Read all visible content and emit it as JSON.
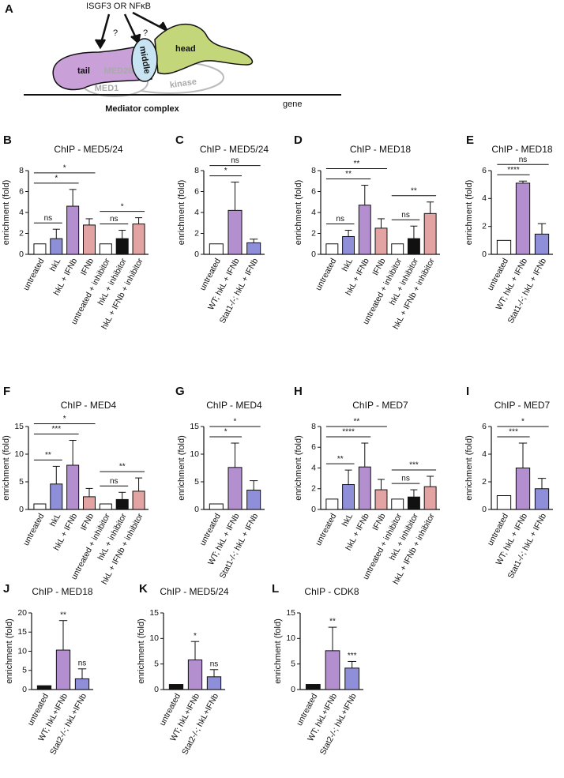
{
  "panel_a": {
    "letter": "A",
    "stimulus": "ISGF3 OR NFκB",
    "question_1": "?",
    "question_2": "?",
    "tail": "tail",
    "middle": "middle",
    "head": "head",
    "med26": "MED26",
    "med1": "MED1",
    "kinase": "kinase",
    "complex": "Mediator complex",
    "gene": "gene"
  },
  "chart_data": [
    {
      "type": "bar",
      "panel": "B",
      "title": "ChIP - MED5/24",
      "ylabel": "enrichment (fold)",
      "categories": [
        "untreated",
        "hkL",
        "hkL + IFNb",
        "IFNb",
        "untreated + inhibitor",
        "hkL + inhibitor",
        "hkL + IFNb + inhibitor"
      ],
      "values": [
        1,
        1.5,
        4.6,
        2.8,
        1,
        1.5,
        2.9
      ],
      "errors": [
        0,
        0.9,
        1.6,
        0.6,
        0,
        0.8,
        0.6
      ],
      "colors": [
        "#ffffff",
        "#8e8fd8",
        "#b48fd0",
        "#e3a3a3",
        "#ffffff",
        "#111111",
        "#e3a3a3"
      ],
      "ylim": [
        0,
        8
      ],
      "yticks": [
        0,
        2,
        4,
        6,
        8
      ],
      "comparisons": [
        {
          "from": 0,
          "to": 1,
          "label": "ns"
        },
        {
          "from": 0,
          "to": 2,
          "label": "*"
        },
        {
          "from": 0,
          "to": 3,
          "label": "*"
        },
        {
          "from": 4,
          "to": 5,
          "label": "ns"
        },
        {
          "from": 4,
          "to": 6,
          "label": "*"
        }
      ]
    },
    {
      "type": "bar",
      "panel": "C",
      "title": "ChIP - MED5/24",
      "ylabel": "enrichment (fold)",
      "categories": [
        "untreated",
        "WT; hkL + IFNb",
        "Stat1-/-; hkL + IFNb"
      ],
      "values": [
        1,
        4.2,
        1.1
      ],
      "errors": [
        0,
        2.7,
        0.35
      ],
      "colors": [
        "#ffffff",
        "#b48fd0",
        "#8e8fd8"
      ],
      "ylim": [
        0,
        8
      ],
      "yticks": [
        0,
        2,
        4,
        6,
        8
      ],
      "comparisons": [
        {
          "from": 0,
          "to": 1,
          "label": "*"
        },
        {
          "from": 0,
          "to": 2,
          "label": "ns"
        }
      ]
    },
    {
      "type": "bar",
      "panel": "D",
      "title": "ChIP - MED18",
      "ylabel": "enrichment (fold)",
      "categories": [
        "untreated",
        "hkL",
        "hkL + IFNb",
        "IFNb",
        "untreated + inhibitor",
        "hkL + inhibitor",
        "hkL + IFNb + inhibitor"
      ],
      "values": [
        1,
        1.7,
        4.7,
        2.5,
        1,
        1.5,
        3.9
      ],
      "errors": [
        0,
        0.6,
        1.9,
        0.9,
        0,
        1.2,
        1.1
      ],
      "colors": [
        "#ffffff",
        "#8e8fd8",
        "#b48fd0",
        "#e3a3a3",
        "#ffffff",
        "#111111",
        "#e3a3a3"
      ],
      "ylim": [
        0,
        8
      ],
      "yticks": [
        0,
        2,
        4,
        6,
        8
      ],
      "comparisons": [
        {
          "from": 0,
          "to": 1,
          "label": "ns"
        },
        {
          "from": 0,
          "to": 2,
          "label": "**"
        },
        {
          "from": 0,
          "to": 3,
          "label": "**"
        },
        {
          "from": 4,
          "to": 5,
          "label": "ns"
        },
        {
          "from": 4,
          "to": 6,
          "label": "**"
        }
      ]
    },
    {
      "type": "bar",
      "panel": "E",
      "title": "ChIP - MED18",
      "ylabel": "enrichment (fold)",
      "categories": [
        "untreated",
        "WT; hkL + IFNb",
        "Stat1-/-; hkL + IFNb"
      ],
      "values": [
        1,
        5.1,
        1.45
      ],
      "errors": [
        0,
        0.15,
        0.75
      ],
      "colors": [
        "#ffffff",
        "#b48fd0",
        "#8e8fd8"
      ],
      "ylim": [
        0,
        6
      ],
      "yticks": [
        0,
        2,
        4,
        6
      ],
      "comparisons": [
        {
          "from": 0,
          "to": 1,
          "label": "****"
        },
        {
          "from": 0,
          "to": 2,
          "label": "ns"
        }
      ]
    },
    {
      "type": "bar",
      "panel": "F",
      "title": "ChIP - MED4",
      "ylabel": "enrichment (fold)",
      "categories": [
        "untreated",
        "hkL",
        "hkL + IFNb",
        "IFNb",
        "untreated + inhibitor",
        "hkL + inhibitor",
        "hkL + IFNb + inhibitor"
      ],
      "values": [
        1,
        4.6,
        8,
        2.3,
        1,
        1.8,
        3.3
      ],
      "errors": [
        0,
        3.2,
        4.5,
        1.5,
        0,
        1.3,
        2.4
      ],
      "colors": [
        "#ffffff",
        "#8e8fd8",
        "#b48fd0",
        "#e3a3a3",
        "#ffffff",
        "#111111",
        "#e3a3a3"
      ],
      "ylim": [
        0,
        15
      ],
      "yticks": [
        0,
        5,
        10,
        15
      ],
      "comparisons": [
        {
          "from": 0,
          "to": 1,
          "label": "**"
        },
        {
          "from": 0,
          "to": 2,
          "label": "***"
        },
        {
          "from": 0,
          "to": 3,
          "label": "*"
        },
        {
          "from": 4,
          "to": 5,
          "label": "ns"
        },
        {
          "from": 4,
          "to": 6,
          "label": "**"
        }
      ]
    },
    {
      "type": "bar",
      "panel": "G",
      "title": "ChIP - MED4",
      "ylabel": "enrichment (fold)",
      "categories": [
        "untreated",
        "WT; hkL + IFNb",
        "Stat1-/-; hkL + IFNb"
      ],
      "values": [
        1,
        7.6,
        3.5
      ],
      "errors": [
        0,
        4.4,
        1.7
      ],
      "colors": [
        "#ffffff",
        "#b48fd0",
        "#8e8fd8"
      ],
      "ylim": [
        0,
        15
      ],
      "yticks": [
        0,
        5,
        10,
        15
      ],
      "comparisons": [
        {
          "from": 0,
          "to": 1,
          "label": "*"
        },
        {
          "from": 0,
          "to": 2,
          "label": "*"
        }
      ]
    },
    {
      "type": "bar",
      "panel": "H",
      "title": "ChIP - MED7",
      "ylabel": "enrichment (fold)",
      "categories": [
        "untreated",
        "hkL",
        "hkL + IFNb",
        "IFNb",
        "untreated + inhibitor",
        "hkL + inhibitor",
        "hkL + IFNb + inhibitor"
      ],
      "values": [
        1,
        2.4,
        4.1,
        1.9,
        1,
        1.2,
        2.2
      ],
      "errors": [
        0,
        1.4,
        2.3,
        1.0,
        0,
        0.7,
        1.0
      ],
      "colors": [
        "#ffffff",
        "#8e8fd8",
        "#b48fd0",
        "#e3a3a3",
        "#ffffff",
        "#111111",
        "#e3a3a3"
      ],
      "ylim": [
        0,
        8
      ],
      "yticks": [
        0,
        2,
        4,
        6,
        8
      ],
      "comparisons": [
        {
          "from": 0,
          "to": 1,
          "label": "**"
        },
        {
          "from": 0,
          "to": 2,
          "label": "****"
        },
        {
          "from": 0,
          "to": 3,
          "label": "**"
        },
        {
          "from": 4,
          "to": 5,
          "label": "ns"
        },
        {
          "from": 4,
          "to": 6,
          "label": "***"
        }
      ]
    },
    {
      "type": "bar",
      "panel": "I",
      "title": "ChIP - MED7",
      "ylabel": "enrichment (fold)",
      "categories": [
        "untreated",
        "WT; hkL + IFNb",
        "Stat1-/-; hkL + IFNb"
      ],
      "values": [
        1,
        3.0,
        1.5
      ],
      "errors": [
        0,
        1.8,
        0.75
      ],
      "colors": [
        "#ffffff",
        "#b48fd0",
        "#8e8fd8"
      ],
      "ylim": [
        0,
        6
      ],
      "yticks": [
        0,
        2,
        4,
        6
      ],
      "comparisons": [
        {
          "from": 0,
          "to": 1,
          "label": "***"
        },
        {
          "from": 0,
          "to": 2,
          "label": "*"
        }
      ]
    },
    {
      "type": "bar",
      "panel": "J",
      "title": "ChIP - MED18",
      "ylabel": "enrichment (fold)",
      "categories": [
        "untreated",
        "WT; hkL+IFNb",
        "Stat2-/-; hkL+IFNb"
      ],
      "values": [
        1,
        10.3,
        2.8
      ],
      "errors": [
        0,
        7.7,
        2.6
      ],
      "colors": [
        "#111111",
        "#b48fd0",
        "#8e8fd8"
      ],
      "ylim": [
        0,
        20
      ],
      "yticks": [
        0,
        5,
        10,
        15,
        20
      ],
      "sig_labels": [
        null,
        "**",
        "ns"
      ]
    },
    {
      "type": "bar",
      "panel": "K",
      "title": "ChIP - MED5/24",
      "ylabel": "enrichment (fold)",
      "categories": [
        "untreated",
        "WT; hkL+IFNb",
        "Stat2-/-; hkL+IFNb"
      ],
      "values": [
        1,
        5.8,
        2.5
      ],
      "errors": [
        0,
        3.6,
        1.4
      ],
      "colors": [
        "#111111",
        "#b48fd0",
        "#8e8fd8"
      ],
      "ylim": [
        0,
        15
      ],
      "yticks": [
        0,
        5,
        10,
        15
      ],
      "sig_labels": [
        null,
        "*",
        "ns"
      ]
    },
    {
      "type": "bar",
      "panel": "L",
      "title": "ChIP - CDK8",
      "ylabel": "enrichment (fold)",
      "categories": [
        "untreated",
        "WT; hkL+IFNb",
        "Stat2-/-; hkL+IFNb"
      ],
      "values": [
        1,
        7.6,
        4.2
      ],
      "errors": [
        0,
        4.6,
        1.3
      ],
      "colors": [
        "#111111",
        "#b48fd0",
        "#8e8fd8"
      ],
      "ylim": [
        0,
        15
      ],
      "yticks": [
        0,
        5,
        10,
        15
      ],
      "sig_labels": [
        null,
        "**",
        "***"
      ]
    }
  ]
}
